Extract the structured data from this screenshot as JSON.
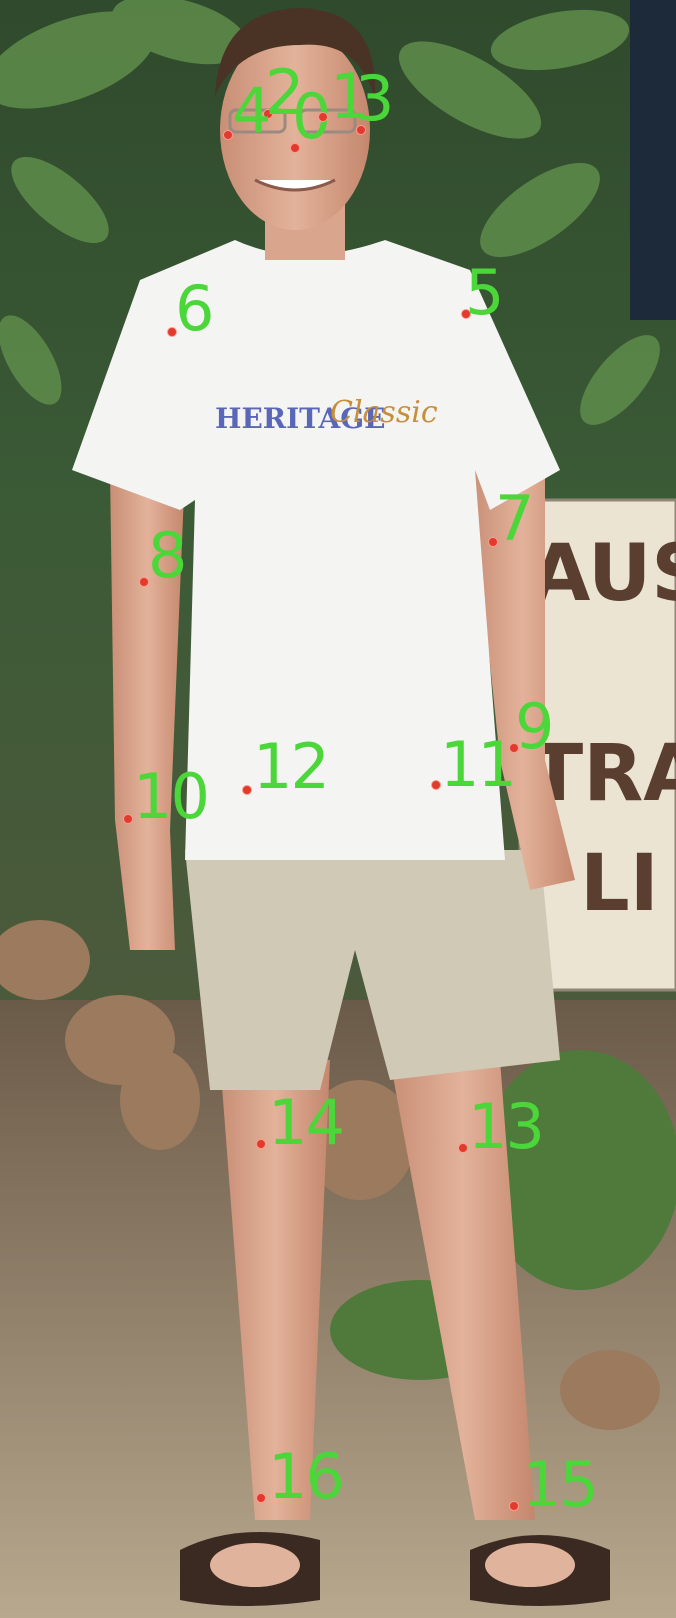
{
  "photo": {
    "description_free": true,
    "shirt_print": {
      "line1": "HERITAGE",
      "line2": "Classic"
    },
    "sign_text": [
      "AUS",
      "TRA",
      "LI"
    ]
  },
  "keypoints": [
    {
      "id": "0",
      "label": "0"
    },
    {
      "id": "1",
      "label": "1"
    },
    {
      "id": "2",
      "label": "2"
    },
    {
      "id": "3",
      "label": "3"
    },
    {
      "id": "4",
      "label": "4"
    },
    {
      "id": "5",
      "label": "5"
    },
    {
      "id": "6",
      "label": "6"
    },
    {
      "id": "7",
      "label": "7"
    },
    {
      "id": "8",
      "label": "8"
    },
    {
      "id": "9",
      "label": "9"
    },
    {
      "id": "10",
      "label": "10"
    },
    {
      "id": "11",
      "label": "11"
    },
    {
      "id": "12",
      "label": "12"
    },
    {
      "id": "13",
      "label": "13"
    },
    {
      "id": "14",
      "label": "14"
    },
    {
      "id": "15",
      "label": "15"
    },
    {
      "id": "16",
      "label": "16"
    }
  ],
  "colors": {
    "keypoint": "#e23a2c",
    "label": "#4bd63a"
  }
}
